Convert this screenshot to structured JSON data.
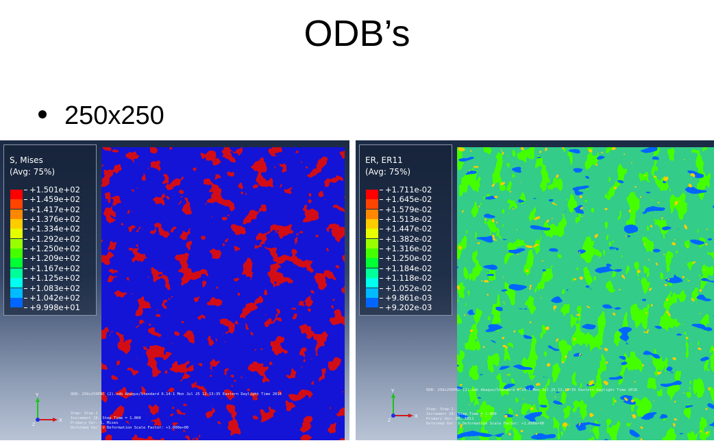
{
  "slide": {
    "title": "ODB’s",
    "bullet": "250x250"
  },
  "left_viewport": {
    "legend": {
      "title_line1": "S, Mises",
      "title_line2": "(Avg: 75%)",
      "levels": [
        "+1.501e+02",
        "+1.459e+02",
        "+1.417e+02",
        "+1.376e+02",
        "+1.334e+02",
        "+1.292e+02",
        "+1.250e+02",
        "+1.209e+02",
        "+1.167e+02",
        "+1.125e+02",
        "+1.083e+02",
        "+1.042e+02",
        "+9.998e+01"
      ],
      "colors": [
        "#ff0000",
        "#ff4400",
        "#ff8800",
        "#ffcc00",
        "#e6ff00",
        "#99ff00",
        "#44ff00",
        "#00ff33",
        "#00ff99",
        "#00ffee",
        "#00bbff",
        "#0066ff",
        "#0000ff"
      ]
    },
    "info": {
      "odb_line": "ODB: 250x250PBC (2).odb    Abaqus/Standard 6.14-1    Mon Jul 25 12:13:35 Eastern Daylight Time 2016",
      "step_line": "Step: Step-1",
      "increment_line": "Increment     28: Step Time =    1.000",
      "primary_line": "Primary Var: S, Mises",
      "deformed_line": "Deformed Var: U   Deformation Scale Factor: +1.000e+00"
    },
    "triad": {
      "y": "Y",
      "x": "X",
      "z": "Z"
    },
    "plot_colors": {
      "high": "#d20e12",
      "low": "#1414d6"
    }
  },
  "right_viewport": {
    "legend": {
      "title_line1": "ER, ER11",
      "title_line2": "(Avg: 75%)",
      "levels": [
        "+1.711e-02",
        "+1.645e-02",
        "+1.579e-02",
        "+1.513e-02",
        "+1.447e-02",
        "+1.382e-02",
        "+1.316e-02",
        "+1.250e-02",
        "+1.184e-02",
        "+1.118e-02",
        "+1.052e-02",
        "+9.861e-03",
        "+9.202e-03"
      ],
      "colors": [
        "#ff0000",
        "#ff4400",
        "#ff8800",
        "#ffcc00",
        "#e6ff00",
        "#99ff00",
        "#44ff00",
        "#00ff33",
        "#00ff99",
        "#00ffee",
        "#00bbff",
        "#0066ff",
        "#0000ff"
      ]
    },
    "info": {
      "odb_line": "ODB: 250x250PBC (2).odb    Abaqus/Standard 6.14-1    Mon Jul 25 12:13:35 Eastern Daylight Time 2016",
      "step_line": "Step: Step-1",
      "increment_line": "Increment     28: Step Time =    1.000",
      "primary_line": "Primary Var: ER, ER11",
      "deformed_line": "Deformed Var: U   Deformation Scale Factor: +1.000e+00"
    },
    "triad": {
      "y": "Y",
      "x": "X",
      "z": "Z"
    },
    "plot_colors": {
      "base": "#33cc88",
      "mid": "#44ff00",
      "high": "#ffcc00",
      "low": "#0066ff"
    }
  }
}
